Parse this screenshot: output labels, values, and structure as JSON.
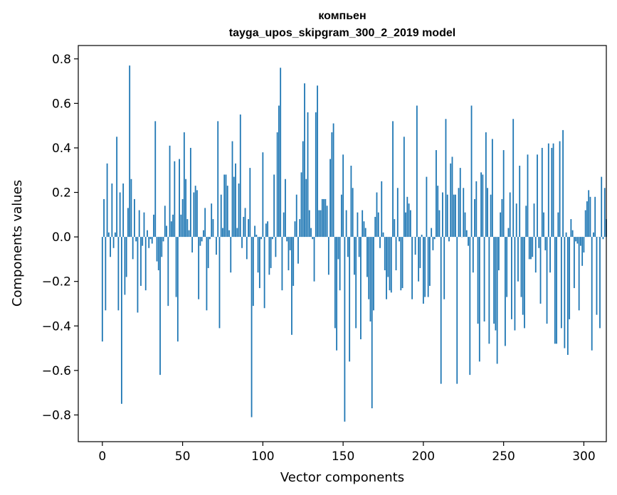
{
  "chart_data": {
    "type": "bar",
    "title_line1": "компьен",
    "title_line2": "tayga_upos_skipgram_300_2_2019 model",
    "xlabel": "Vector components",
    "ylabel": "Components values",
    "xlim": [
      -15,
      314
    ],
    "ylim": [
      -0.92,
      0.86
    ],
    "xticks": [
      0,
      50,
      100,
      150,
      200,
      250,
      300
    ],
    "xtick_labels": [
      "0",
      "50",
      "100",
      "150",
      "200",
      "250",
      "300"
    ],
    "yticks": [
      -0.8,
      -0.6,
      -0.4,
      -0.2,
      0.0,
      0.2,
      0.4,
      0.6,
      0.8
    ],
    "ytick_labels": [
      "−0.8",
      "−0.6",
      "−0.4",
      "−0.2",
      "0.0",
      "0.2",
      "0.4",
      "0.6",
      "0.8"
    ],
    "bar_color": "#1f77b4",
    "grid": false,
    "values": [
      -0.47,
      0.17,
      -0.33,
      0.33,
      0.02,
      -0.09,
      0.24,
      -0.05,
      0.02,
      0.45,
      -0.33,
      0.2,
      -0.75,
      0.24,
      -0.26,
      -0.18,
      0.13,
      0.77,
      0.26,
      -0.1,
      0.17,
      -0.02,
      -0.34,
      0.12,
      -0.22,
      -0.04,
      0.11,
      -0.24,
      0.03,
      -0.05,
      -0.01,
      -0.03,
      0.1,
      0.52,
      -0.11,
      -0.15,
      -0.62,
      -0.09,
      -0.02,
      0.14,
      0.05,
      -0.31,
      0.41,
      0.07,
      0.1,
      0.34,
      -0.27,
      -0.47,
      0.35,
      0.1,
      0.17,
      0.47,
      0.26,
      0.08,
      0.03,
      0.4,
      -0.07,
      0.2,
      0.23,
      0.21,
      -0.28,
      -0.04,
      -0.02,
      0.03,
      0.13,
      -0.33,
      -0.14,
      -0.01,
      0.15,
      0.08,
      0.0,
      -0.08,
      0.52,
      -0.41,
      0.19,
      0.04,
      0.28,
      0.28,
      0.23,
      0.03,
      -0.16,
      0.43,
      0.27,
      0.33,
      0.04,
      0.24,
      0.55,
      -0.05,
      0.09,
      0.13,
      -0.1,
      0.08,
      0.31,
      -0.81,
      -0.31,
      0.05,
      0.01,
      -0.16,
      -0.23,
      -0.01,
      0.38,
      -0.32,
      0.06,
      0.07,
      -0.17,
      -0.14,
      -0.01,
      0.28,
      -0.09,
      0.47,
      0.59,
      0.76,
      -0.24,
      0.11,
      0.26,
      -0.02,
      -0.15,
      -0.06,
      -0.44,
      -0.22,
      0.07,
      0.19,
      -0.12,
      0.08,
      0.29,
      0.43,
      0.69,
      0.26,
      0.56,
      0.12,
      0.04,
      -0.01,
      -0.2,
      0.56,
      0.68,
      0.12,
      0.12,
      0.17,
      0.17,
      0.17,
      0.14,
      -0.17,
      0.35,
      0.47,
      0.51,
      -0.41,
      -0.51,
      -0.1,
      -0.24,
      0.19,
      0.37,
      -0.83,
      0.12,
      -0.09,
      -0.56,
      0.32,
      0.22,
      -0.17,
      -0.41,
      0.11,
      -0.09,
      -0.46,
      0.12,
      0.07,
      0.04,
      -0.18,
      -0.28,
      -0.38,
      -0.77,
      -0.33,
      0.09,
      0.2,
      0.11,
      -0.05,
      0.25,
      0.02,
      -0.15,
      -0.28,
      -0.18,
      -0.24,
      -0.25,
      0.52,
      0.08,
      -0.15,
      0.22,
      -0.02,
      -0.24,
      -0.23,
      0.45,
      0.11,
      0.18,
      0.15,
      0.12,
      -0.28,
      0.0,
      -0.08,
      0.59,
      -0.2,
      -0.14,
      0.01,
      -0.3,
      -0.27,
      0.27,
      -0.27,
      -0.22,
      0.04,
      -0.06,
      -0.01,
      0.39,
      0.23,
      0.12,
      -0.66,
      0.2,
      -0.28,
      0.53,
      0.19,
      -0.02,
      0.33,
      0.36,
      0.19,
      0.19,
      -0.66,
      0.22,
      0.31,
      0.0,
      0.22,
      0.11,
      0.03,
      -0.04,
      -0.62,
      0.59,
      -0.16,
      0.17,
      0.25,
      -0.39,
      -0.56,
      0.29,
      0.28,
      -0.38,
      0.47,
      0.22,
      -0.48,
      0.19,
      0.44,
      -0.39,
      -0.42,
      -0.57,
      -0.15,
      0.11,
      0.17,
      0.39,
      -0.49,
      -0.27,
      0.04,
      0.2,
      -0.37,
      0.53,
      -0.42,
      0.15,
      -0.2,
      0.32,
      -0.27,
      -0.35,
      -0.41,
      0.14,
      0.37,
      -0.1,
      -0.1,
      -0.09,
      0.15,
      -0.16,
      0.37,
      -0.05,
      -0.3,
      0.4,
      0.11,
      -0.06,
      -0.39,
      0.42,
      -0.16,
      0.4,
      0.42,
      -0.48,
      -0.48,
      0.11,
      0.43,
      -0.41,
      0.48,
      -0.5,
      0.02,
      -0.53,
      -0.37,
      0.08,
      0.03,
      -0.23,
      -0.02,
      -0.03,
      -0.33,
      -0.04,
      -0.13,
      -0.07,
      0.12,
      0.16,
      0.21,
      0.18,
      -0.51,
      0.02,
      0.18,
      -0.35,
      0.0,
      -0.41,
      0.27,
      -0.01,
      0.22,
      0.08
    ]
  }
}
